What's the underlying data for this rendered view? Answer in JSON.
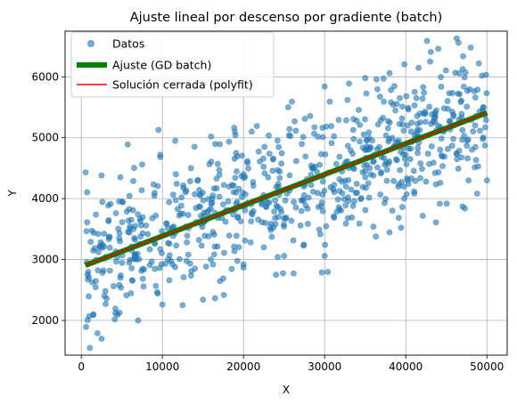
{
  "chart_data": {
    "type": "scatter",
    "title": "Ajuste lineal por descenso por gradiente (batch)",
    "xlabel": "X",
    "ylabel": "Y",
    "xlim": [
      -2000,
      52500
    ],
    "ylim": [
      1430,
      6750
    ],
    "xticks": [
      0,
      10000,
      20000,
      30000,
      40000,
      50000
    ],
    "yticks": [
      2000,
      3000,
      4000,
      5000,
      6000
    ],
    "grid": true,
    "legend_position": "top-left",
    "series": [
      {
        "name": "Datos",
        "kind": "scatter",
        "color": "#1f77b4",
        "alpha": 0.6,
        "n_points": 800,
        "x_range": [
          500,
          50000
        ],
        "trend": {
          "intercept": 2880,
          "slope": 0.0506
        },
        "noise_std": 560,
        "sample_points": [
          [
            2500,
            1700
          ],
          [
            2000,
            1790
          ],
          [
            1500,
            2100
          ],
          [
            3000,
            2270
          ],
          [
            7000,
            2000
          ],
          [
            2500,
            4380
          ],
          [
            7500,
            4560
          ],
          [
            16000,
            5020
          ],
          [
            19000,
            5040
          ],
          [
            21000,
            5100
          ],
          [
            25500,
            5500
          ],
          [
            30000,
            5840
          ],
          [
            33000,
            5890
          ],
          [
            35000,
            5980
          ],
          [
            38000,
            6060
          ],
          [
            43000,
            6250
          ],
          [
            44000,
            6460
          ],
          [
            46500,
            6560
          ],
          [
            48000,
            6480
          ],
          [
            49000,
            6220
          ],
          [
            47000,
            3870
          ],
          [
            42000,
            4490
          ],
          [
            36000,
            3540
          ],
          [
            33500,
            3880
          ],
          [
            30000,
            3060
          ],
          [
            25000,
            3060
          ],
          [
            22500,
            3200
          ],
          [
            24000,
            2750
          ],
          [
            20000,
            2920
          ],
          [
            17500,
            2690
          ],
          [
            15000,
            2340
          ],
          [
            12500,
            2250
          ],
          [
            10000,
            2260
          ],
          [
            50000,
            4300
          ],
          [
            49500,
            4980
          ]
        ]
      },
      {
        "name": "Ajuste (GD batch)",
        "kind": "line",
        "color": "#008000",
        "x": [
          500,
          50000
        ],
        "y": [
          2905,
          5410
        ]
      },
      {
        "name": "Solución cerrada (polyfit)",
        "kind": "line",
        "color": "#ff0000",
        "x": [
          500,
          50000
        ],
        "y": [
          2905,
          5410
        ]
      }
    ]
  }
}
